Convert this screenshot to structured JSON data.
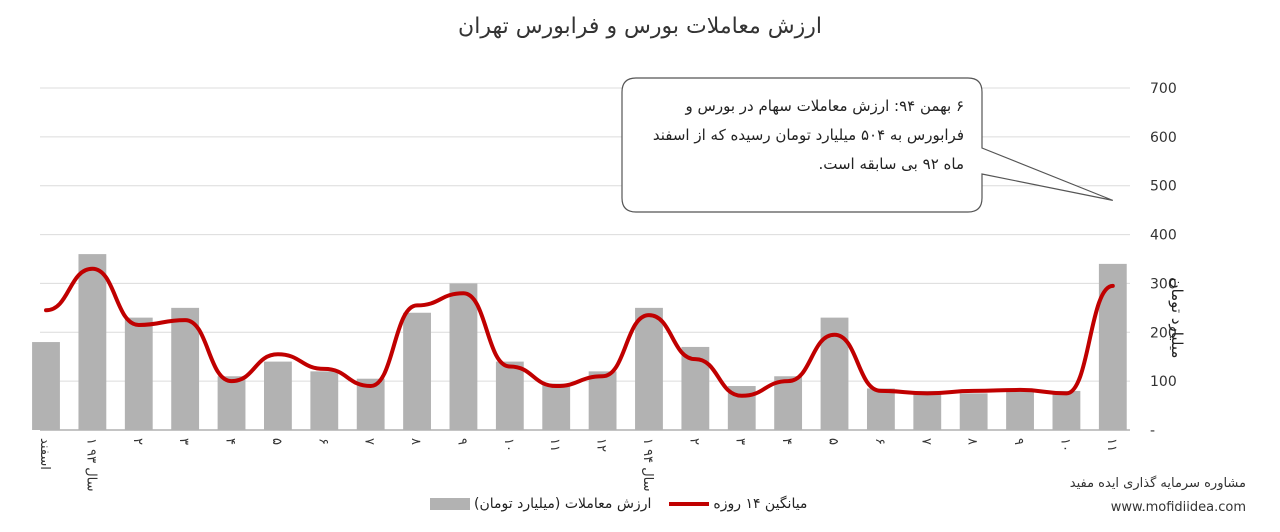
{
  "chart_data": {
    "type": "bar",
    "title": "ارزش معاملات بورس و فرابورس تهران",
    "ylabel": "میلیارد تومان",
    "ylim": [
      0,
      700
    ],
    "y_ticks": [
      "-",
      "100",
      "200",
      "300",
      "400",
      "500",
      "600",
      "700"
    ],
    "x_tick_labels": [
      "اسفند",
      "۱ سال ۹۳",
      "۲",
      "۳",
      "۴",
      "۵",
      "۶",
      "۷",
      "۸",
      "۹",
      "۱۰",
      "۱۱",
      "۱۲",
      "۱ سال ۹۴",
      "۲",
      "۳",
      "۴",
      "۵",
      "۶",
      "۷",
      "۸",
      "۹",
      "۱۰",
      "۱۱"
    ],
    "grid": true,
    "legend_position": "bottom",
    "series": [
      {
        "name": "ارزش معاملات (میلیارد تومان)",
        "type": "bar",
        "color": "#b2b2b2",
        "x": [
          "اسفند",
          "۱ سال ۹۳",
          "۲",
          "۳",
          "۴",
          "۵",
          "۶",
          "۷",
          "۸",
          "۹",
          "۱۰",
          "۱۱",
          "۱۲",
          "۱ سال ۹۴",
          "۲",
          "۳",
          "۴",
          "۵",
          "۶",
          "۷",
          "۸",
          "۹",
          "۱۰",
          "۱۱"
        ],
        "values": [
          180,
          360,
          230,
          250,
          110,
          140,
          120,
          105,
          240,
          300,
          140,
          95,
          120,
          250,
          170,
          90,
          110,
          230,
          85,
          80,
          75,
          80,
          80,
          340
        ]
      },
      {
        "name": "میانگین ۱۴ روزه",
        "type": "line",
        "color": "#c00000",
        "x": [
          "اسفند",
          "۱ سال ۹۳",
          "۲",
          "۳",
          "۴",
          "۵",
          "۶",
          "۷",
          "۸",
          "۹",
          "۱۰",
          "۱۱",
          "۱۲",
          "۱ سال ۹۴",
          "۲",
          "۳",
          "۴",
          "۵",
          "۶",
          "۷",
          "۸",
          "۹",
          "۱۰",
          "۱۱"
        ],
        "values": [
          245,
          330,
          215,
          225,
          100,
          155,
          125,
          90,
          255,
          280,
          130,
          90,
          110,
          235,
          145,
          70,
          100,
          195,
          80,
          75,
          80,
          82,
          75,
          295
        ]
      }
    ]
  },
  "callout": {
    "text": "۶ بهمن ۹۴: ارزش معاملات سهام در بورس و فرابورس به ۵۰۴ میلیارد تومان رسیده که از اسفند ماه ۹۲ بی سابقه است.",
    "pointer_value": 470
  },
  "credit": {
    "company": "مشاوره سرمایه گذاری ایده مفید",
    "url": "www.mofidiidea.com"
  }
}
